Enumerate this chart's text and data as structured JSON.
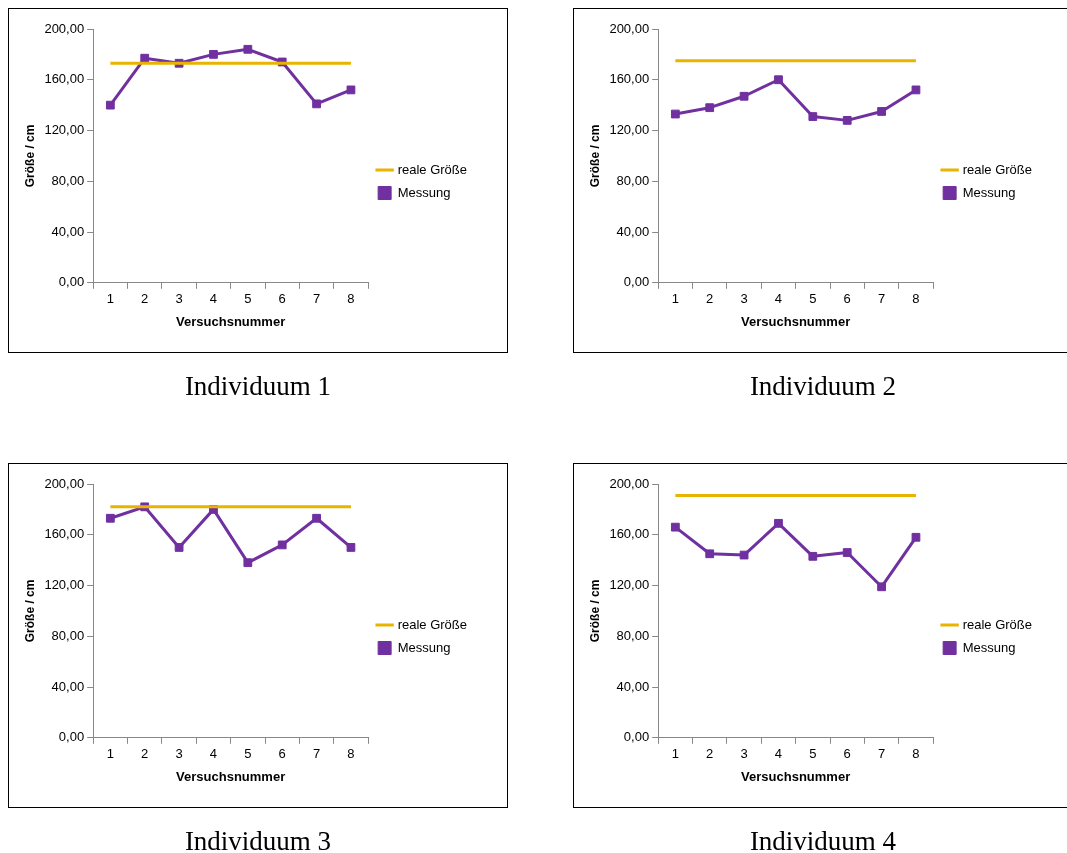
{
  "chart_data": [
    {
      "type": "line",
      "title": "Individuum 1",
      "xlabel": "Versuchsnummer",
      "ylabel": "Größe / cm",
      "categories": [
        "1",
        "2",
        "3",
        "4",
        "5",
        "6",
        "7",
        "8"
      ],
      "series": [
        {
          "name": "reale Größe",
          "color": "#e8b400",
          "marker": "none",
          "values": [
            173,
            173,
            173,
            173,
            173,
            173,
            173,
            173
          ]
        },
        {
          "name": "Messung",
          "color": "#7030a0",
          "marker": "square",
          "values": [
            140,
            177,
            173,
            180,
            184,
            174,
            141,
            152
          ]
        }
      ],
      "ylim": [
        0,
        200
      ],
      "yticks": [
        {
          "value": 0,
          "label": "0,00"
        },
        {
          "value": 40,
          "label": "40,00"
        },
        {
          "value": 80,
          "label": "80,00"
        },
        {
          "value": 120,
          "label": "120,00"
        },
        {
          "value": 160,
          "label": "160,00"
        },
        {
          "value": 200,
          "label": "200,00"
        }
      ],
      "grid": false,
      "legend": "right"
    },
    {
      "type": "line",
      "title": "Individuum 2",
      "xlabel": "Versuchsnummer",
      "ylabel": "Größe / cm",
      "categories": [
        "1",
        "2",
        "3",
        "4",
        "5",
        "6",
        "7",
        "8"
      ],
      "series": [
        {
          "name": "reale Größe",
          "color": "#e8b400",
          "marker": "none",
          "values": [
            175,
            175,
            175,
            175,
            175,
            175,
            175,
            175
          ]
        },
        {
          "name": "Messung",
          "color": "#7030a0",
          "marker": "square",
          "values": [
            133,
            138,
            147,
            160,
            131,
            128,
            135,
            152
          ]
        }
      ],
      "ylim": [
        0,
        200
      ],
      "yticks": [
        {
          "value": 0,
          "label": "0,00"
        },
        {
          "value": 40,
          "label": "40,00"
        },
        {
          "value": 80,
          "label": "80,00"
        },
        {
          "value": 120,
          "label": "120,00"
        },
        {
          "value": 160,
          "label": "160,00"
        },
        {
          "value": 200,
          "label": "200,00"
        }
      ],
      "grid": false,
      "legend": "right"
    },
    {
      "type": "line",
      "title": "Individuum 3",
      "xlabel": "Versuchsnummer",
      "ylabel": "Größe / cm",
      "categories": [
        "1",
        "2",
        "3",
        "4",
        "5",
        "6",
        "7",
        "8"
      ],
      "series": [
        {
          "name": "reale Größe",
          "color": "#e8b400",
          "marker": "none",
          "values": [
            182,
            182,
            182,
            182,
            182,
            182,
            182,
            182
          ]
        },
        {
          "name": "Messung",
          "color": "#7030a0",
          "marker": "square",
          "values": [
            173,
            182,
            150,
            180,
            138,
            152,
            173,
            150
          ]
        }
      ],
      "ylim": [
        0,
        200
      ],
      "yticks": [
        {
          "value": 0,
          "label": "0,00"
        },
        {
          "value": 40,
          "label": "40,00"
        },
        {
          "value": 80,
          "label": "80,00"
        },
        {
          "value": 120,
          "label": "120,00"
        },
        {
          "value": 160,
          "label": "160,00"
        },
        {
          "value": 200,
          "label": "200,00"
        }
      ],
      "grid": false,
      "legend": "right"
    },
    {
      "type": "line",
      "title": "Individuum 4",
      "xlabel": "Versuchsnummer",
      "ylabel": "Größe / cm",
      "categories": [
        "1",
        "2",
        "3",
        "4",
        "5",
        "6",
        "7",
        "8"
      ],
      "series": [
        {
          "name": "reale Größe",
          "color": "#e8b400",
          "marker": "none",
          "values": [
            191,
            191,
            191,
            191,
            191,
            191,
            191,
            191
          ]
        },
        {
          "name": "Messung",
          "color": "#7030a0",
          "marker": "square",
          "values": [
            166,
            145,
            144,
            169,
            143,
            146,
            119,
            158
          ]
        }
      ],
      "ylim": [
        0,
        200
      ],
      "yticks": [
        {
          "value": 0,
          "label": "0,00"
        },
        {
          "value": 40,
          "label": "40,00"
        },
        {
          "value": 80,
          "label": "80,00"
        },
        {
          "value": 120,
          "label": "120,00"
        },
        {
          "value": 160,
          "label": "160,00"
        },
        {
          "value": 200,
          "label": "200,00"
        }
      ],
      "grid": false,
      "legend": "right"
    }
  ]
}
